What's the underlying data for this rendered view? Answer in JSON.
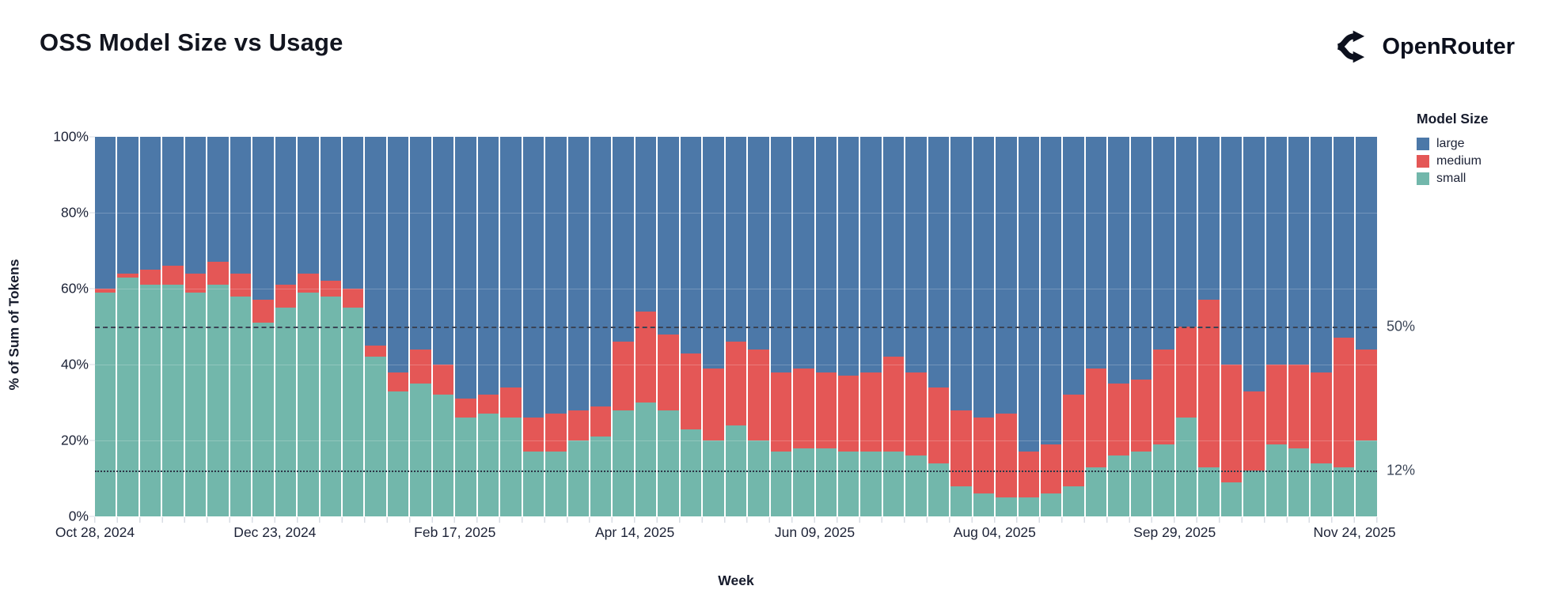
{
  "title": "OSS Model Size vs Usage",
  "brand": {
    "name": "OpenRouter",
    "logo_icon": "openrouter-fork-icon",
    "color": "#0c101d"
  },
  "chart_data": {
    "type": "bar",
    "stacked": true,
    "normalized": true,
    "title": "OSS Model Size vs Usage",
    "xlabel": "Week",
    "ylabel": "% of Sum of Tokens",
    "ylim": [
      0,
      100
    ],
    "grid": true,
    "y_ticks": [
      {
        "value": 0,
        "label": "0%"
      },
      {
        "value": 20,
        "label": "20%"
      },
      {
        "value": 40,
        "label": "40%"
      },
      {
        "value": 60,
        "label": "60%"
      },
      {
        "value": 80,
        "label": "80%"
      },
      {
        "value": 100,
        "label": "100%"
      }
    ],
    "x_ticks": [
      {
        "index": 0,
        "label": "Oct 28, 2024"
      },
      {
        "index": 8,
        "label": "Dec 23, 2024"
      },
      {
        "index": 16,
        "label": "Feb 17, 2025"
      },
      {
        "index": 24,
        "label": "Apr 14, 2025"
      },
      {
        "index": 32,
        "label": "Jun 09, 2025"
      },
      {
        "index": 40,
        "label": "Aug 04, 2025"
      },
      {
        "index": 48,
        "label": "Sep 29, 2025"
      },
      {
        "index": 56,
        "label": "Nov 24, 2025"
      }
    ],
    "reference_lines": [
      {
        "value": 50,
        "style": "dashed",
        "label": "50%"
      },
      {
        "value": 12,
        "style": "dotted",
        "label": "12%"
      }
    ],
    "legend": {
      "title": "Model Size",
      "position": "right",
      "entries": [
        {
          "label": "large",
          "color": "#4c78a8"
        },
        {
          "label": "medium",
          "color": "#e45756"
        },
        {
          "label": "small",
          "color": "#72b7ab"
        }
      ]
    },
    "stack_order_top_to_bottom": [
      "large",
      "medium",
      "small"
    ],
    "categories": [
      "Oct 28, 2024",
      "Nov 04, 2024",
      "Nov 11, 2024",
      "Nov 18, 2024",
      "Nov 25, 2024",
      "Dec 02, 2024",
      "Dec 09, 2024",
      "Dec 16, 2024",
      "Dec 23, 2024",
      "Dec 30, 2024",
      "Jan 06, 2025",
      "Jan 13, 2025",
      "Jan 20, 2025",
      "Jan 27, 2025",
      "Feb 03, 2025",
      "Feb 10, 2025",
      "Feb 17, 2025",
      "Feb 24, 2025",
      "Mar 03, 2025",
      "Mar 10, 2025",
      "Mar 17, 2025",
      "Mar 24, 2025",
      "Mar 31, 2025",
      "Apr 07, 2025",
      "Apr 14, 2025",
      "Apr 21, 2025",
      "Apr 28, 2025",
      "May 05, 2025",
      "May 12, 2025",
      "May 19, 2025",
      "May 26, 2025",
      "Jun 02, 2025",
      "Jun 09, 2025",
      "Jun 16, 2025",
      "Jun 23, 2025",
      "Jun 30, 2025",
      "Jul 07, 2025",
      "Jul 14, 2025",
      "Jul 21, 2025",
      "Jul 28, 2025",
      "Aug 04, 2025",
      "Aug 11, 2025",
      "Aug 18, 2025",
      "Aug 25, 2025",
      "Sep 01, 2025",
      "Sep 08, 2025",
      "Sep 15, 2025",
      "Sep 22, 2025",
      "Sep 29, 2025",
      "Oct 06, 2025",
      "Oct 13, 2025",
      "Oct 20, 2025",
      "Oct 27, 2025",
      "Nov 03, 2025",
      "Nov 10, 2025",
      "Nov 17, 2025",
      "Nov 24, 2025"
    ],
    "series": [
      {
        "name": "small",
        "color": "#72b7ab",
        "values": [
          59,
          63,
          61,
          61,
          59,
          61,
          58,
          51,
          55,
          59,
          58,
          55,
          42,
          33,
          35,
          32,
          26,
          27,
          26,
          17,
          17,
          20,
          21,
          28,
          30,
          28,
          23,
          20,
          24,
          20,
          17,
          18,
          18,
          17,
          17,
          17,
          16,
          14,
          8,
          6,
          5,
          5,
          6,
          8,
          13,
          16,
          17,
          19,
          26,
          13,
          9,
          12,
          19,
          18,
          14,
          13,
          20
        ]
      },
      {
        "name": "medium",
        "color": "#e45756",
        "values": [
          1,
          1,
          4,
          5,
          5,
          6,
          6,
          6,
          6,
          5,
          4,
          5,
          3,
          5,
          9,
          8,
          5,
          5,
          8,
          9,
          10,
          8,
          8,
          18,
          24,
          20,
          20,
          19,
          22,
          24,
          21,
          21,
          20,
          20,
          21,
          25,
          22,
          20,
          20,
          20,
          22,
          12,
          13,
          24,
          26,
          19,
          19,
          25,
          24,
          44,
          31,
          21,
          21,
          22,
          24,
          34,
          24
        ]
      },
      {
        "name": "large",
        "color": "#4c78a8",
        "values": [
          40,
          36,
          35,
          34,
          36,
          33,
          36,
          43,
          39,
          36,
          38,
          40,
          55,
          62,
          56,
          60,
          69,
          68,
          66,
          74,
          73,
          72,
          71,
          54,
          46,
          52,
          57,
          61,
          54,
          56,
          62,
          61,
          62,
          63,
          62,
          58,
          62,
          66,
          72,
          74,
          73,
          83,
          81,
          68,
          61,
          65,
          64,
          56,
          50,
          43,
          60,
          67,
          60,
          60,
          62,
          53,
          56
        ]
      }
    ]
  }
}
